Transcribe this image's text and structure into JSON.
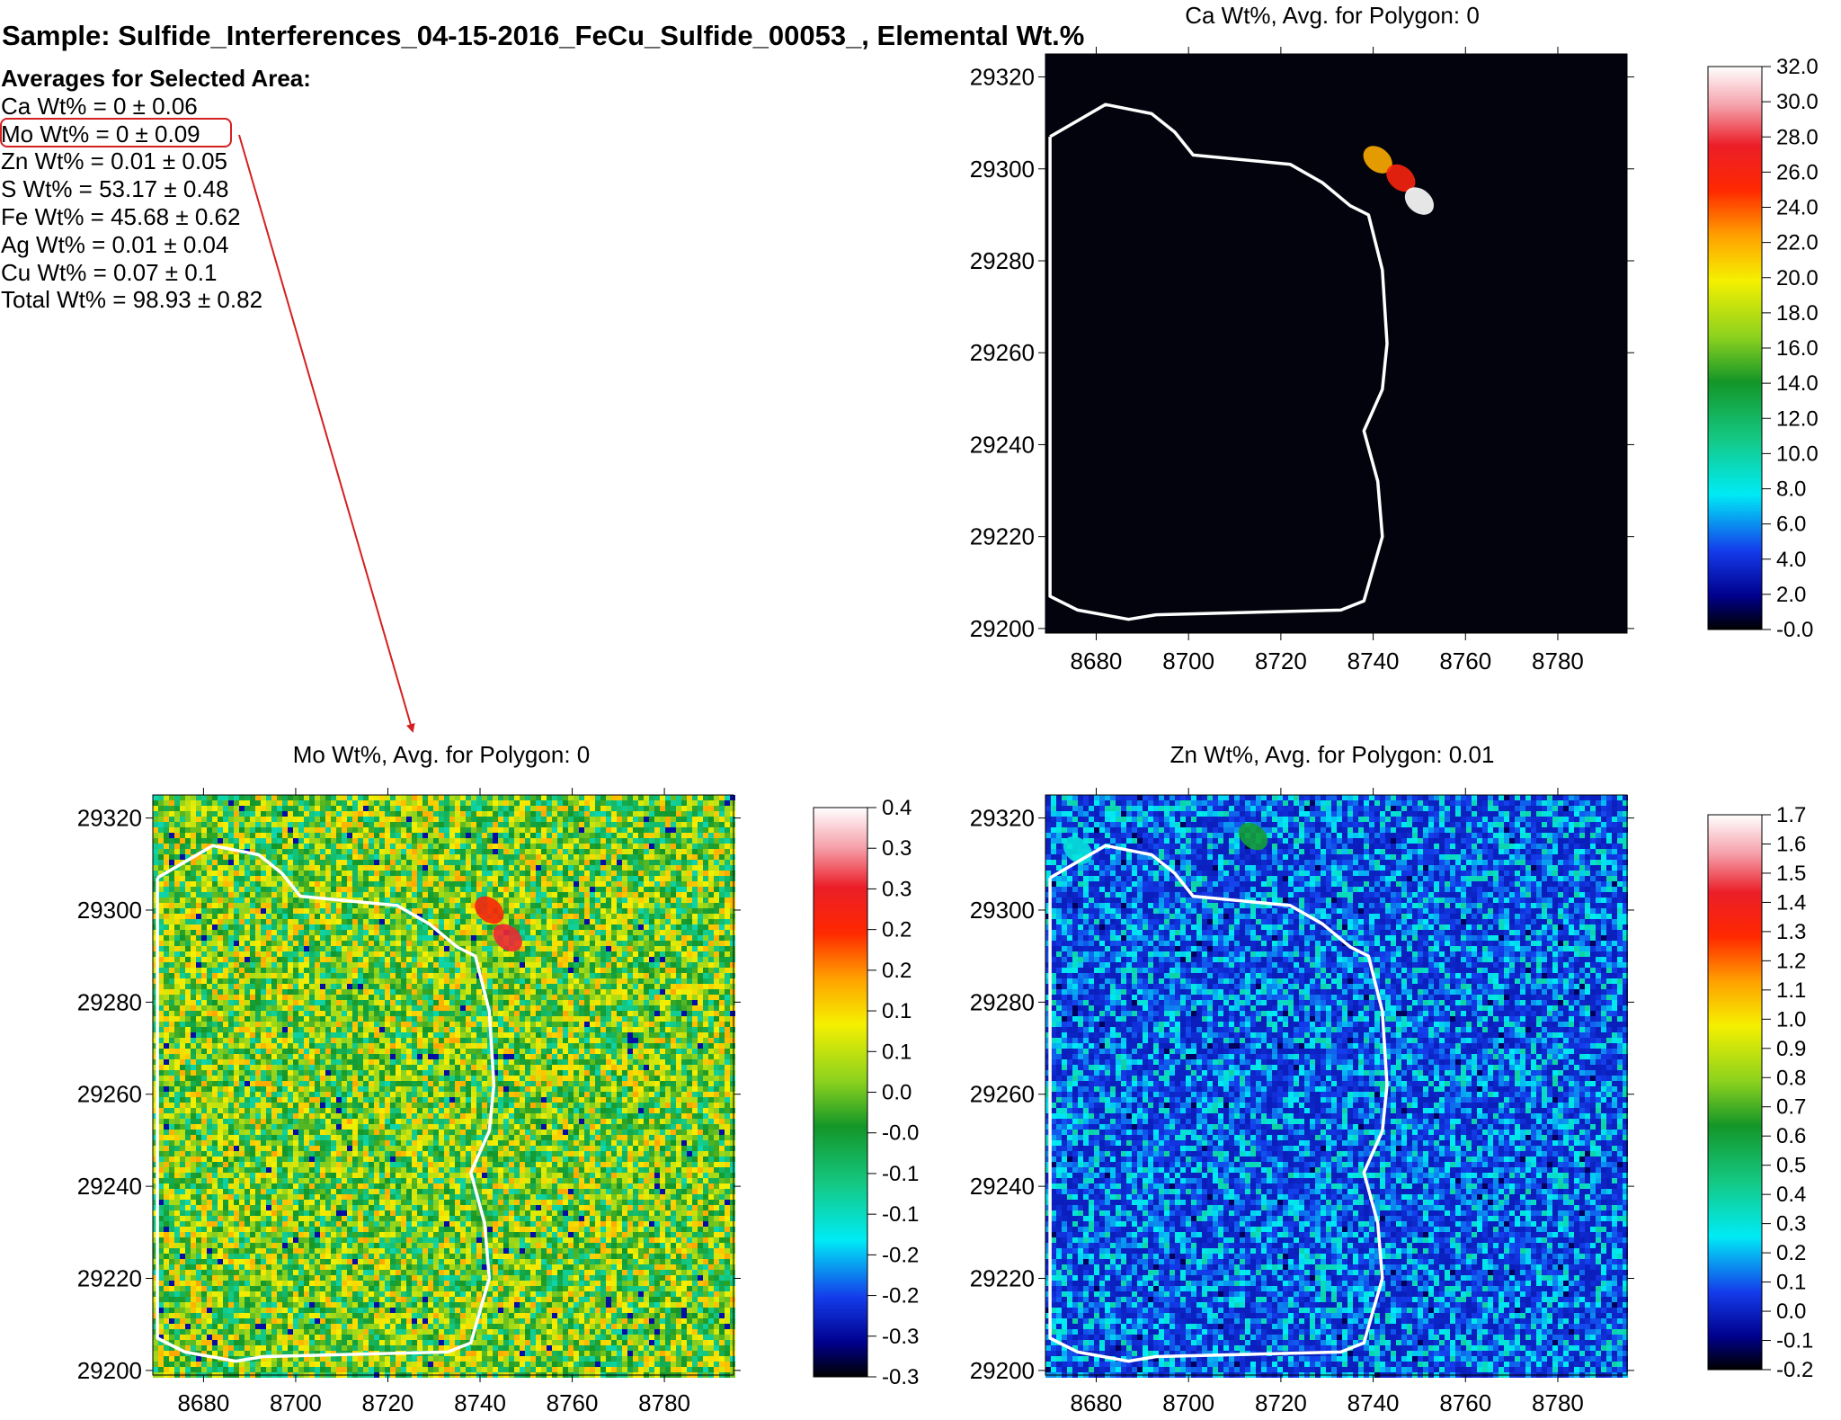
{
  "sample_title": "Sample: Sulfide_Interferences_04-15-2016_FeCu_Sulfide_00053_, Elemental Wt.%",
  "averages": {
    "heading": "Averages for Selected Area:",
    "lines": [
      "Ca Wt% = 0 ± 0.06",
      "Mo Wt% = 0 ± 0.09",
      "Zn Wt% = 0.01 ± 0.05",
      "S Wt% = 53.17 ± 0.48",
      "Fe Wt% = 45.68 ± 0.62",
      "Ag Wt% = 0.01 ± 0.04",
      "Cu Wt% = 0.07 ± 0.1",
      "Total Wt% = 98.93 ± 0.82"
    ],
    "highlighted_line": "Mo Wt% = 0 ± 0.09",
    "highlight_color": "#d42020"
  },
  "chart_data": [
    {
      "type": "heatmap",
      "title": "Ca Wt%, Avg. for Polygon: 0",
      "x_ticks": [
        "8680",
        "8700",
        "8720",
        "8740",
        "8760",
        "8780"
      ],
      "y_ticks": [
        "29320",
        "29300",
        "29280",
        "29260",
        "29240",
        "29220",
        "29200"
      ],
      "xlim": [
        8669,
        8795
      ],
      "ylim": [
        29199,
        29325
      ],
      "colorbar_ticks": [
        "32.0",
        "30.0",
        "28.0",
        "26.0",
        "24.0",
        "22.0",
        "20.0",
        "18.0",
        "16.0",
        "14.0",
        "12.0",
        "10.0",
        "8.0",
        "6.0",
        "4.0",
        "2.0",
        "-0.0"
      ],
      "colorbar_range": [
        0,
        32
      ],
      "background": "#03030d",
      "features": [
        {
          "x": 8741,
          "y": 29302,
          "value": 22
        },
        {
          "x": 8746,
          "y": 29298,
          "value": 26
        },
        {
          "x": 8750,
          "y": 29293,
          "value": 32
        }
      ],
      "polygon": [
        [
          8670,
          29307
        ],
        [
          8682,
          29314
        ],
        [
          8692,
          29312
        ],
        [
          8697,
          29308
        ],
        [
          8701,
          29303
        ],
        [
          8722,
          29301
        ],
        [
          8729,
          29297
        ],
        [
          8735,
          29292
        ],
        [
          8739,
          29290
        ],
        [
          8742,
          29278
        ],
        [
          8743,
          29262
        ],
        [
          8742,
          29252
        ],
        [
          8738,
          29243
        ],
        [
          8741,
          29232
        ],
        [
          8742,
          29220
        ],
        [
          8738,
          29206
        ],
        [
          8733,
          29204
        ],
        [
          8693,
          29203
        ],
        [
          8687,
          29202
        ],
        [
          8676,
          29204
        ],
        [
          8670,
          29207
        ],
        [
          8670,
          29307
        ]
      ],
      "grid": false
    },
    {
      "type": "heatmap",
      "title": "Mo Wt%, Avg. for Polygon: 0",
      "x_ticks": [
        "8680",
        "8700",
        "8720",
        "8740",
        "8760",
        "8780"
      ],
      "y_ticks": [
        "29320",
        "29300",
        "29280",
        "29260",
        "29240",
        "29220",
        "29200"
      ],
      "xlim": [
        8669,
        8795
      ],
      "ylim": [
        29199,
        29325
      ],
      "colorbar_ticks": [
        "0.4",
        "0.3",
        "0.3",
        "0.2",
        "0.2",
        "0.1",
        "0.1",
        "0.0",
        "-0.0",
        "-0.1",
        "-0.1",
        "-0.2",
        "-0.2",
        "-0.3",
        "-0.3"
      ],
      "colorbar_range": [
        -0.35,
        0.4
      ],
      "background": "#8fcf3a",
      "features": [
        {
          "x": 8742,
          "y": 29300,
          "value": 0.25
        },
        {
          "x": 8746,
          "y": 29294,
          "value": 0.3
        }
      ],
      "polygon": [
        [
          8670,
          29307
        ],
        [
          8682,
          29314
        ],
        [
          8692,
          29312
        ],
        [
          8697,
          29308
        ],
        [
          8701,
          29303
        ],
        [
          8722,
          29301
        ],
        [
          8729,
          29297
        ],
        [
          8735,
          29292
        ],
        [
          8739,
          29290
        ],
        [
          8742,
          29278
        ],
        [
          8743,
          29262
        ],
        [
          8742,
          29252
        ],
        [
          8738,
          29243
        ],
        [
          8741,
          29232
        ],
        [
          8742,
          29220
        ],
        [
          8738,
          29206
        ],
        [
          8733,
          29204
        ],
        [
          8693,
          29203
        ],
        [
          8687,
          29202
        ],
        [
          8676,
          29204
        ],
        [
          8670,
          29207
        ],
        [
          8670,
          29307
        ]
      ],
      "grid": false
    },
    {
      "type": "heatmap",
      "title": "Zn Wt%, Avg. for Polygon: 0.01",
      "x_ticks": [
        "8680",
        "8700",
        "8720",
        "8740",
        "8760",
        "8780"
      ],
      "y_ticks": [
        "29320",
        "29300",
        "29280",
        "29260",
        "29240",
        "29220",
        "29200"
      ],
      "xlim": [
        8669,
        8795
      ],
      "ylim": [
        29199,
        29325
      ],
      "colorbar_ticks": [
        "1.7",
        "1.6",
        "1.5",
        "1.4",
        "1.3",
        "1.2",
        "1.1",
        "1.0",
        "0.9",
        "0.8",
        "0.7",
        "0.6",
        "0.5",
        "0.4",
        "0.3",
        "0.2",
        "0.1",
        "0.0",
        "-0.1",
        "-0.2"
      ],
      "colorbar_range": [
        -0.2,
        1.7
      ],
      "background": "#1f3fd6",
      "features": [
        {
          "x": 8676,
          "y": 29313,
          "value": 0.3
        },
        {
          "x": 8714,
          "y": 29316,
          "value": 0.6
        }
      ],
      "polygon": [
        [
          8670,
          29307
        ],
        [
          8682,
          29314
        ],
        [
          8692,
          29312
        ],
        [
          8697,
          29308
        ],
        [
          8701,
          29303
        ],
        [
          8722,
          29301
        ],
        [
          8729,
          29297
        ],
        [
          8735,
          29292
        ],
        [
          8739,
          29290
        ],
        [
          8742,
          29278
        ],
        [
          8743,
          29262
        ],
        [
          8742,
          29252
        ],
        [
          8738,
          29243
        ],
        [
          8741,
          29232
        ],
        [
          8742,
          29220
        ],
        [
          8738,
          29206
        ],
        [
          8733,
          29204
        ],
        [
          8693,
          29203
        ],
        [
          8687,
          29202
        ],
        [
          8676,
          29204
        ],
        [
          8670,
          29207
        ],
        [
          8670,
          29307
        ]
      ],
      "grid": false
    }
  ]
}
